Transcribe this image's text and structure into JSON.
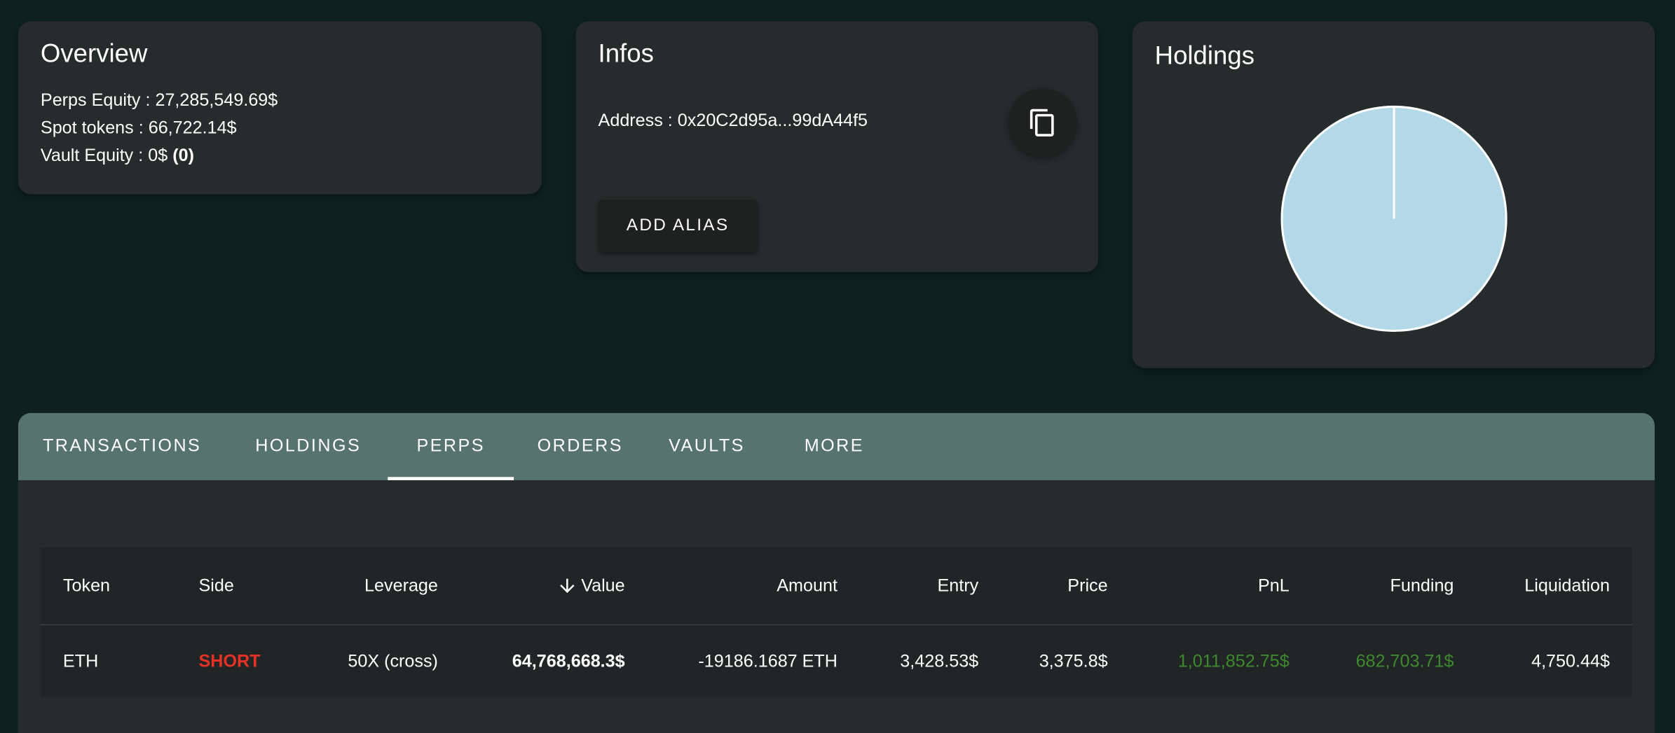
{
  "overview": {
    "title": "Overview",
    "perps_equity": "Perps Equity : 27,285,549.69$",
    "spot_tokens": "Spot tokens : 66,722.14$",
    "vault_equity_label": "Vault Equity : 0$ ",
    "vault_equity_count": "(0)"
  },
  "infos": {
    "title": "Infos",
    "address": "Address : 0x20C2d95a...99dA44f5",
    "copy_icon": "copy-icon",
    "add_alias_label": "ADD ALIAS"
  },
  "holdings": {
    "title": "Holdings"
  },
  "chart_data": {
    "type": "pie",
    "values": [
      100
    ],
    "colors": [
      "#b3d9e8"
    ],
    "legend": "none"
  },
  "tabs": [
    {
      "label": "TRANSACTIONS"
    },
    {
      "label": "HOLDINGS"
    },
    {
      "label": "PERPS",
      "active": true
    },
    {
      "label": "ORDERS"
    },
    {
      "label": "VAULTS"
    },
    {
      "label": "MORE"
    }
  ],
  "table": {
    "headers": [
      "Token",
      "Side",
      "Leverage",
      "Value",
      "Amount",
      "Entry",
      "Price",
      "PnL",
      "Funding",
      "Liquidation"
    ],
    "sort": {
      "column": "Value",
      "direction": "descending",
      "icon": "arrow-down-icon"
    },
    "rows": [
      [
        "ETH",
        "SHORT",
        "50X (cross)",
        "64,768,668.3$",
        "-19186.1687 ETH",
        "3,428.53$",
        "3,375.8$",
        "1,011,852.75$",
        "682,703.71$",
        "4,750.44$"
      ]
    ]
  },
  "colors": {
    "background": "#0e211f",
    "card": "#262b2b",
    "tabbar": "#57736d",
    "short": "#e53224",
    "positive": "#3f8a2e"
  }
}
